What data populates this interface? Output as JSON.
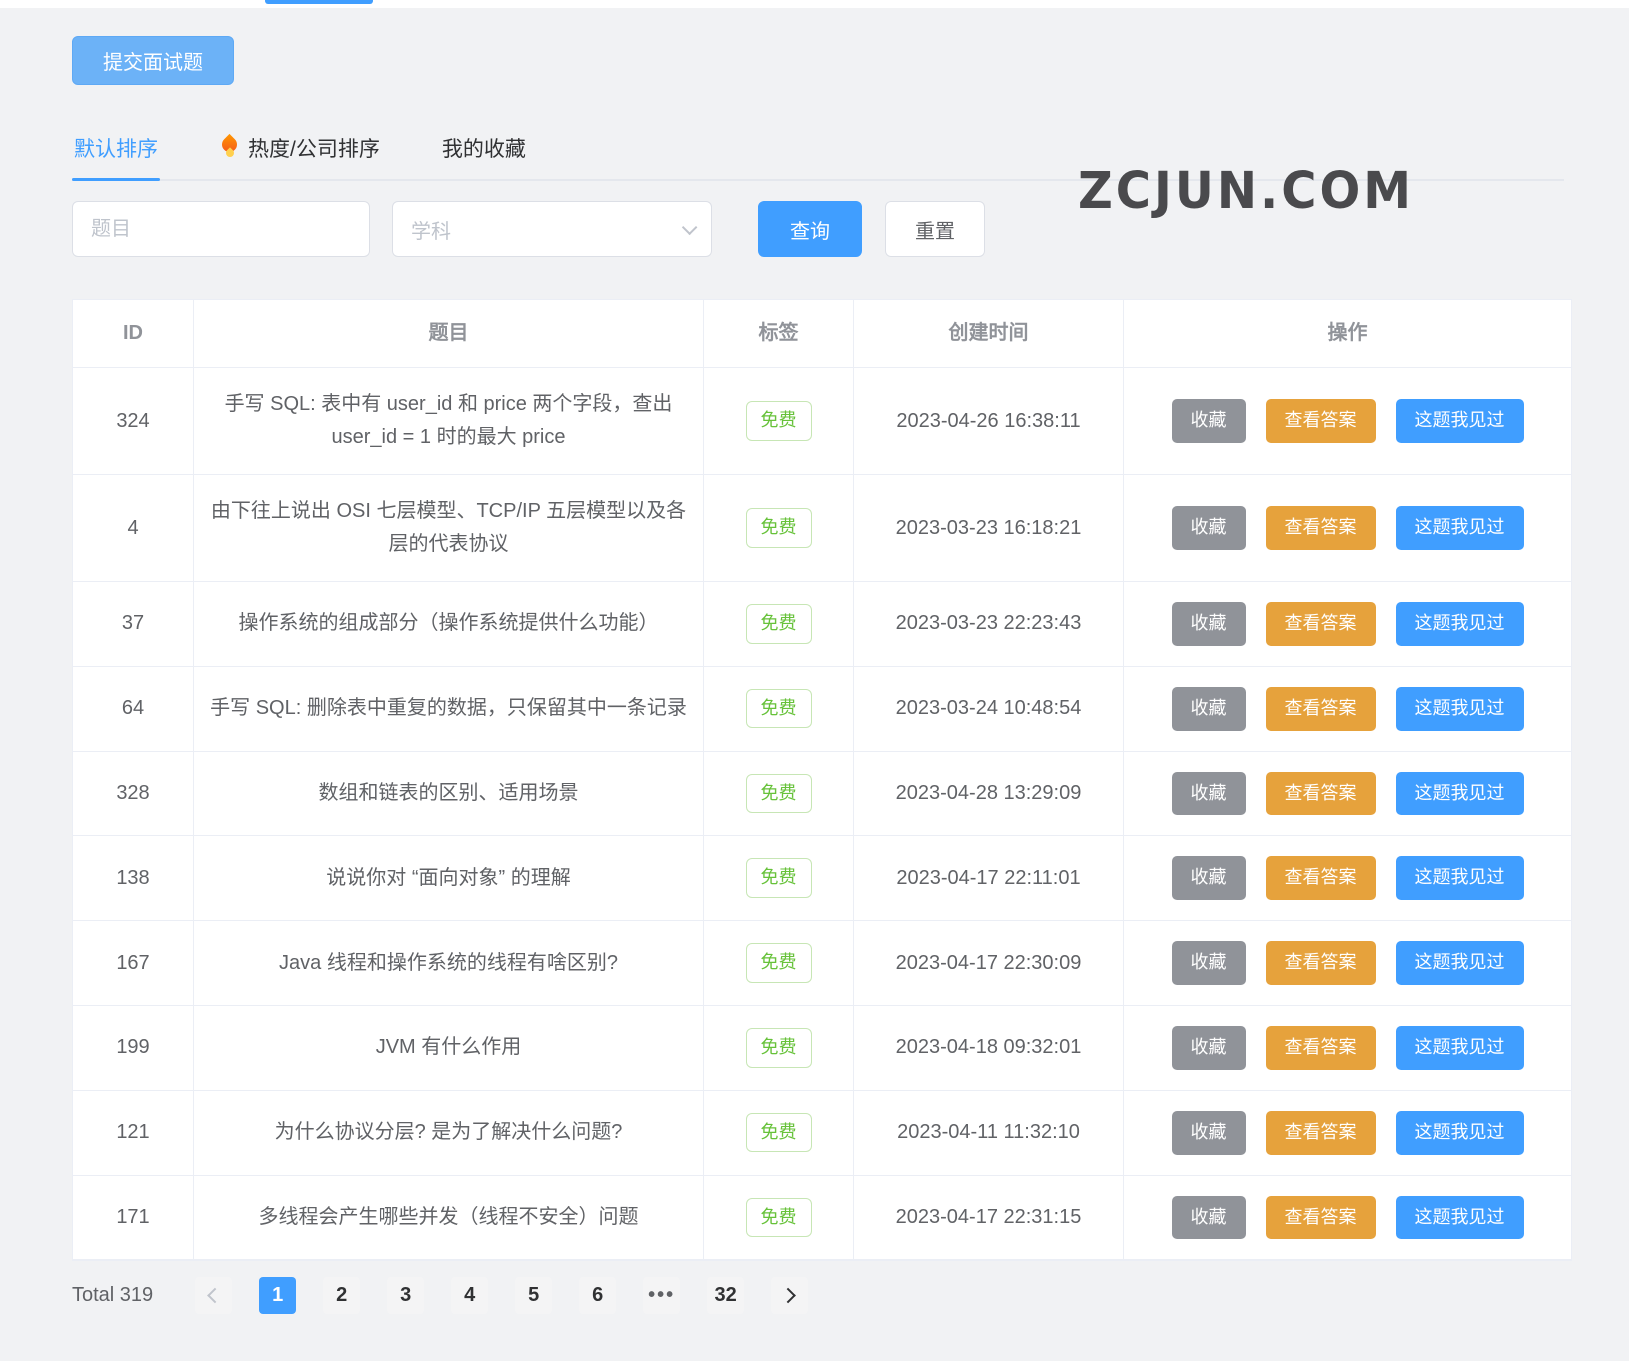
{
  "toolbar": {
    "submit_label": "提交面试题"
  },
  "tabs": [
    {
      "label": "默认排序",
      "active": true
    },
    {
      "label": "热度/公司排序",
      "icon": "fire-icon",
      "active": false
    },
    {
      "label": "我的收藏",
      "active": false
    }
  ],
  "watermark": "ZCJUN.COM",
  "filters": {
    "title_placeholder": "题目",
    "subject_placeholder": "学科",
    "query_label": "查询",
    "reset_label": "重置"
  },
  "table": {
    "columns": [
      "ID",
      "题目",
      "标签",
      "创建时间",
      "操作"
    ],
    "actions": [
      "收藏",
      "查看答案",
      "这题我见过"
    ],
    "rows": [
      {
        "id": "324",
        "title": "手写 SQL: 表中有 user_id 和 price 两个字段，查出 user_id = 1 时的最大 price",
        "tag": "免费",
        "created": "2023-04-26 16:38:11"
      },
      {
        "id": "4",
        "title": "由下往上说出 OSI 七层模型、TCP/IP 五层模型以及各层的代表协议",
        "tag": "免费",
        "created": "2023-03-23 16:18:21"
      },
      {
        "id": "37",
        "title": "操作系统的组成部分（操作系统提供什么功能）",
        "tag": "免费",
        "created": "2023-03-23 22:23:43"
      },
      {
        "id": "64",
        "title": "手写 SQL: 删除表中重复的数据，只保留其中一条记录",
        "tag": "免费",
        "created": "2023-03-24 10:48:54"
      },
      {
        "id": "328",
        "title": "数组和链表的区别、适用场景",
        "tag": "免费",
        "created": "2023-04-28 13:29:09"
      },
      {
        "id": "138",
        "title": "说说你对 “面向对象” 的理解",
        "tag": "免费",
        "created": "2023-04-17 22:11:01"
      },
      {
        "id": "167",
        "title": "Java 线程和操作系统的线程有啥区别?",
        "tag": "免费",
        "created": "2023-04-17 22:30:09"
      },
      {
        "id": "199",
        "title": "JVM 有什么作用",
        "tag": "免费",
        "created": "2023-04-18 09:32:01"
      },
      {
        "id": "121",
        "title": "为什么协议分层? 是为了解决什么问题?",
        "tag": "免费",
        "created": "2023-04-11 11:32:10"
      },
      {
        "id": "171",
        "title": "多线程会产生哪些并发（线程不安全）问题",
        "tag": "免费",
        "created": "2023-04-17 22:31:15"
      }
    ]
  },
  "pagination": {
    "total_label": "Total 319",
    "pages": [
      "1",
      "2",
      "3",
      "4",
      "5",
      "6",
      "•••",
      "32"
    ],
    "active_page": "1"
  },
  "colors": {
    "primary": "#409eff",
    "submit_blue": "#6cb2f7",
    "warning": "#e6a23c",
    "info_gray": "#909399",
    "tag_green": "#67c23a",
    "background": "#f1f2f4"
  }
}
